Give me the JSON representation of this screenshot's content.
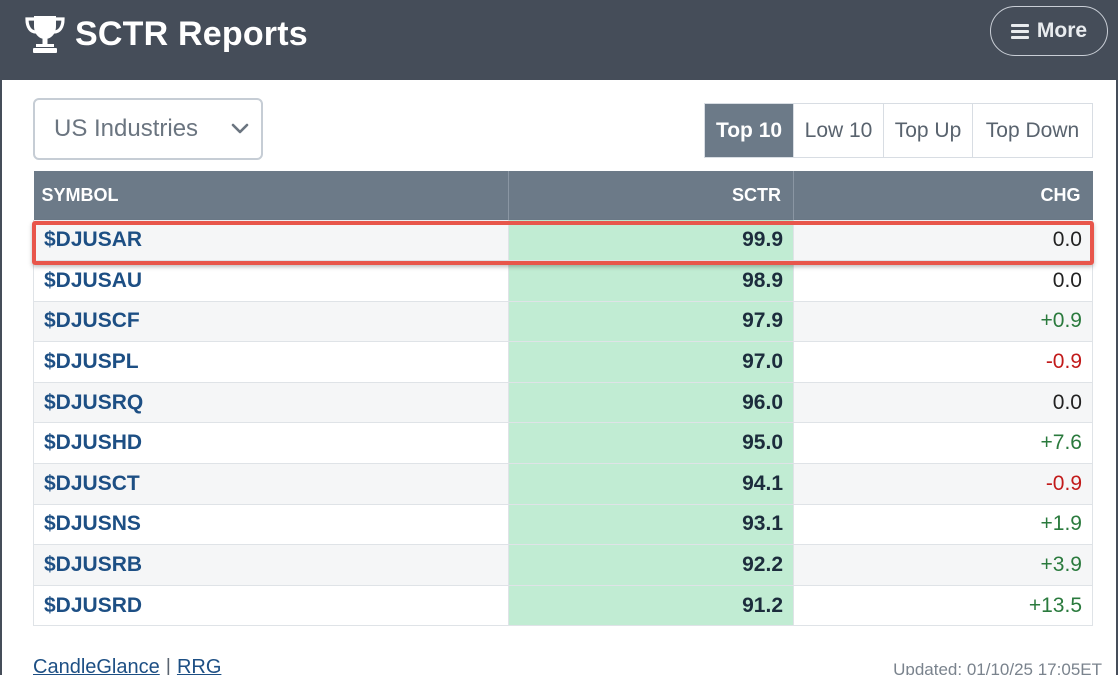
{
  "header": {
    "title": "SCTR Reports",
    "trophy_icon": "trophy-icon",
    "more_label": "More",
    "background": "#454d59"
  },
  "selector": {
    "value": "US Industries"
  },
  "tabs": [
    {
      "label": "Top 10",
      "active": true
    },
    {
      "label": "Low 10",
      "active": false
    },
    {
      "label": "Top Up",
      "active": false
    },
    {
      "label": "Top Down",
      "active": false
    }
  ],
  "table": {
    "columns": [
      "SYMBOL",
      "SCTR",
      "CHG"
    ],
    "rows": [
      {
        "symbol": "$DJUSAR",
        "sctr": "99.9",
        "chg": "0.0"
      },
      {
        "symbol": "$DJUSAU",
        "sctr": "98.9",
        "chg": "0.0"
      },
      {
        "symbol": "$DJUSCF",
        "sctr": "97.9",
        "chg": "+0.9"
      },
      {
        "symbol": "$DJUSPL",
        "sctr": "97.0",
        "chg": "-0.9"
      },
      {
        "symbol": "$DJUSRQ",
        "sctr": "96.0",
        "chg": "0.0"
      },
      {
        "symbol": "$DJUSHD",
        "sctr": "95.0",
        "chg": "+7.6"
      },
      {
        "symbol": "$DJUSCT",
        "sctr": "94.1",
        "chg": "-0.9"
      },
      {
        "symbol": "$DJUSNS",
        "sctr": "93.1",
        "chg": "+1.9"
      },
      {
        "symbol": "$DJUSRB",
        "sctr": "92.2",
        "chg": "+3.9"
      },
      {
        "symbol": "$DJUSRD",
        "sctr": "91.2",
        "chg": "+13.5"
      }
    ],
    "highlight_color": "#e8564b",
    "sctr_cell_color": "#c1ecd3",
    "positive_color": "#2a7a3d",
    "negative_color": "#c21a1a"
  },
  "footer": {
    "link_candleglance": "CandleGlance",
    "separator": "|",
    "link_rrg": "RRG",
    "updated": "Updated: 01/10/25 17:05ET"
  }
}
